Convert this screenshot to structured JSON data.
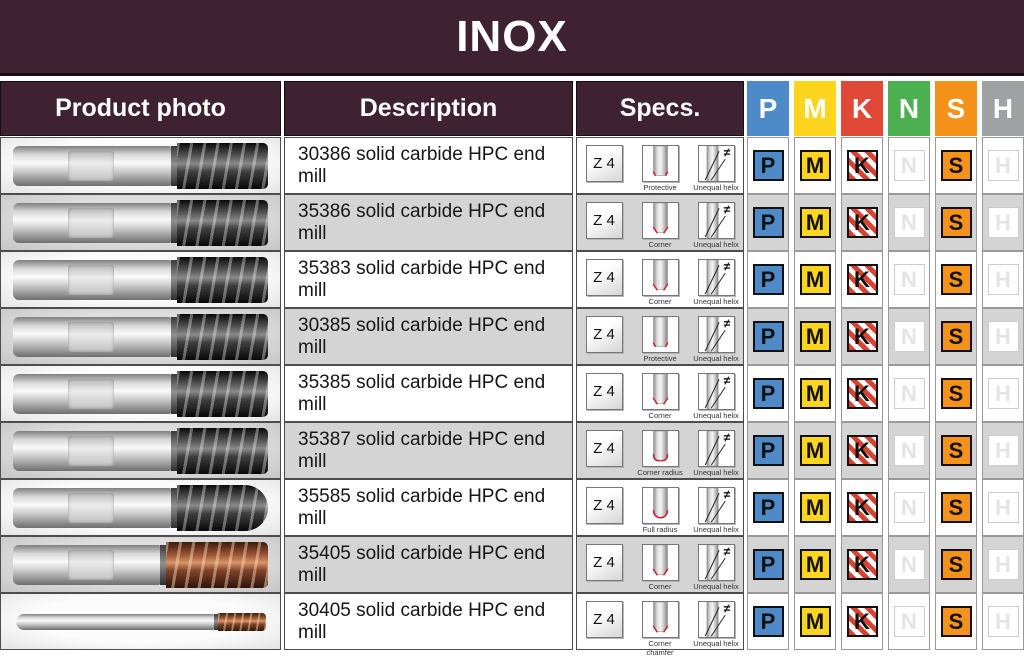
{
  "title": "INOX",
  "colors": {
    "header_bg": "#3e2231",
    "P": "#4e8ac8",
    "M": "#fdd41e",
    "K": "#e04838",
    "N": "#4caf50",
    "S": "#f59219",
    "H": "#9fa1a3",
    "k_stripe_red": "#d8422f",
    "active_badge_text": "#111111"
  },
  "table": {
    "headers": {
      "photo": "Product photo",
      "description": "Description",
      "specs": "Specs."
    },
    "material_classes": [
      "P",
      "M",
      "K",
      "N",
      "S",
      "H"
    ],
    "rows": [
      {
        "description": "30386 solid carbide HPC end mill",
        "photo_variant": "dark",
        "specs": {
          "flutes": "Z 4",
          "profile": "Protective chamfer",
          "helix": "Unequal helix",
          "helix_symbol": "≠"
        },
        "materials": {
          "P": true,
          "M": true,
          "K": true,
          "N": false,
          "S": true,
          "H": false
        }
      },
      {
        "description": "35386 solid carbide HPC end mill",
        "photo_variant": "dark",
        "specs": {
          "flutes": "Z 4",
          "profile": "Corner chamfer",
          "helix": "Unequal helix",
          "helix_symbol": "≠"
        },
        "materials": {
          "P": true,
          "M": true,
          "K": true,
          "N": false,
          "S": true,
          "H": false
        }
      },
      {
        "description": "35383 solid carbide HPC end mill",
        "photo_variant": "dark",
        "specs": {
          "flutes": "Z 4",
          "profile": "Corner chamfer",
          "helix": "Unequal helix",
          "helix_symbol": "≠"
        },
        "materials": {
          "P": true,
          "M": true,
          "K": true,
          "N": false,
          "S": true,
          "H": false
        }
      },
      {
        "description": "30385 solid carbide HPC end mill",
        "photo_variant": "dark",
        "specs": {
          "flutes": "Z 4",
          "profile": "Protective chamfer",
          "helix": "Unequal helix",
          "helix_symbol": "≠"
        },
        "materials": {
          "P": true,
          "M": true,
          "K": true,
          "N": false,
          "S": true,
          "H": false
        }
      },
      {
        "description": "35385 solid carbide HPC end mill",
        "photo_variant": "dark",
        "specs": {
          "flutes": "Z 4",
          "profile": "Corner chamfer",
          "helix": "Unequal helix",
          "helix_symbol": "≠"
        },
        "materials": {
          "P": true,
          "M": true,
          "K": true,
          "N": false,
          "S": true,
          "H": false
        }
      },
      {
        "description": "35387 solid carbide HPC end mill",
        "photo_variant": "dark",
        "specs": {
          "flutes": "Z 4",
          "profile": "Corner radius",
          "helix": "Unequal helix",
          "helix_symbol": "≠"
        },
        "materials": {
          "P": true,
          "M": true,
          "K": true,
          "N": false,
          "S": true,
          "H": false
        }
      },
      {
        "description": "35585 solid carbide HPC end mill",
        "photo_variant": "dark-ball",
        "specs": {
          "flutes": "Z 4",
          "profile": "Full radius",
          "helix": "Unequal helix",
          "helix_symbol": "≠"
        },
        "materials": {
          "P": true,
          "M": true,
          "K": true,
          "N": false,
          "S": true,
          "H": false
        }
      },
      {
        "description": "35405 solid carbide HPC end mill",
        "photo_variant": "copper",
        "specs": {
          "flutes": "Z 4",
          "profile": "Corner chamfer",
          "helix": "Unequal helix",
          "helix_symbol": "≠"
        },
        "materials": {
          "P": true,
          "M": true,
          "K": true,
          "N": false,
          "S": true,
          "H": false
        }
      },
      {
        "description": "30405 solid carbide HPC end mill",
        "photo_variant": "copper-thin",
        "specs": {
          "flutes": "Z 4",
          "profile": "Corner chamfer",
          "helix": "Unequal helix",
          "helix_symbol": "≠"
        },
        "materials": {
          "P": true,
          "M": true,
          "K": true,
          "N": false,
          "S": true,
          "H": false
        }
      }
    ]
  }
}
